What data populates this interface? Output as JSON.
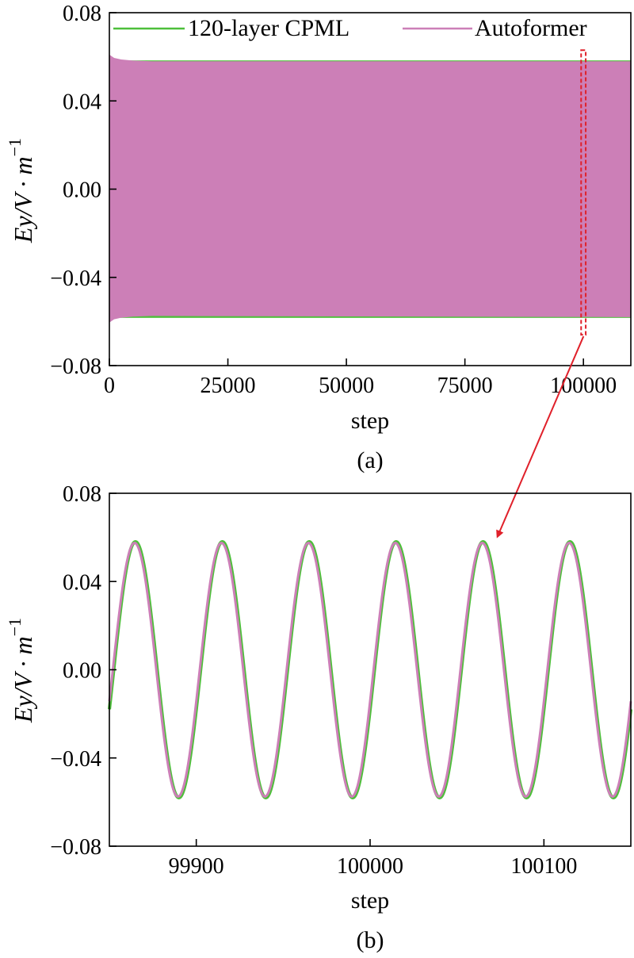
{
  "legend": {
    "items": [
      {
        "label": "120-layer CPML",
        "color": "#4dbf3a"
      },
      {
        "label": "Autoformer",
        "color": "#cc7fb7"
      }
    ]
  },
  "chart_data": [
    {
      "type": "line",
      "panel_label": "(a)",
      "xlabel": "step",
      "ylabel": "Ey/V · m",
      "ylabel_superscript": "−1",
      "xlim": [
        0,
        110000
      ],
      "ylim": [
        -0.08,
        0.08
      ],
      "xticks": [
        0,
        25000,
        50000,
        75000,
        100000
      ],
      "xtick_labels": [
        "0",
        "25000",
        "50000",
        "75000",
        "100000"
      ],
      "yticks": [
        -0.08,
        -0.04,
        0.0,
        0.04,
        0.08
      ],
      "ytick_labels": [
        "−0.08",
        "−0.04",
        "0.00",
        "0.04",
        "0.08"
      ],
      "grid": false,
      "legend_position": "top",
      "series": [
        {
          "name": "120-layer CPML",
          "color": "#4dbf3a",
          "envelope_upper": 0.058,
          "envelope_lower": -0.058
        },
        {
          "name": "Autoformer",
          "color": "#cc7fb7",
          "envelope_upper": 0.058,
          "envelope_lower": -0.058,
          "initial_peak": 0.061
        }
      ],
      "highlight_region": {
        "x": [
          99850,
          100150
        ],
        "y": [
          -0.066,
          0.063
        ],
        "color": "#e0202a"
      }
    },
    {
      "type": "line",
      "panel_label": "(b)",
      "xlabel": "step",
      "ylabel": "Ey/V · m",
      "ylabel_superscript": "−1",
      "xlim": [
        99850,
        100150
      ],
      "ylim": [
        -0.08,
        0.08
      ],
      "xticks": [
        99900,
        100000,
        100100
      ],
      "xtick_labels": [
        "99900",
        "100000",
        "100100"
      ],
      "yticks": [
        -0.08,
        -0.04,
        0.0,
        0.04,
        0.08
      ],
      "ytick_labels": [
        "−0.08",
        "−0.04",
        "0.00",
        "0.04",
        "0.08"
      ],
      "grid": false,
      "series": [
        {
          "name": "120-layer CPML",
          "color": "#4dbf3a",
          "amplitude": 0.058,
          "period": 50,
          "peak_at": 99865
        },
        {
          "name": "Autoformer",
          "color": "#cc7fb7",
          "amplitude": 0.0575,
          "period": 50,
          "peak_at": 99864.5
        }
      ]
    }
  ],
  "arrow": {
    "color": "#e0202a"
  }
}
